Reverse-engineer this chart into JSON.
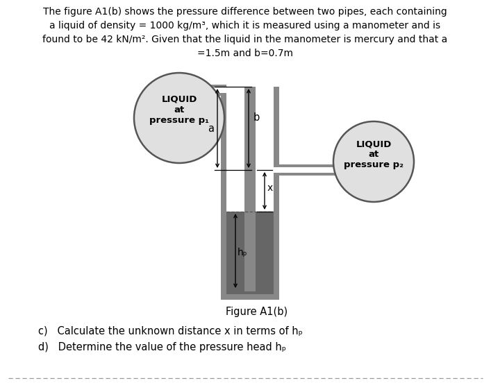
{
  "title_text": "The figure A1(b) shows the pressure difference between two pipes, each containing\na liquid of density = 1000 kg/m³, which it is measured using a manometer and is\nfound to be 42 kN/m². Given that the liquid in the manometer is mercury and that a\n=1.5m and b=0.7m",
  "figure_label": "Figure A1(b)",
  "question_c": "c)   Calculate the unknown distance x in terms of hₚ",
  "question_d": "d)   Determine the value of the pressure head hₚ",
  "liquid1_label": "LIQUID\nat\npressure p₁",
  "liquid2_label": "LIQUID\nat\npressure p₂",
  "label_a": "a",
  "label_b": "b",
  "label_x": "x",
  "label_hp": "hₚ",
  "bg_color": "#ffffff",
  "pipe_gray": "#888888",
  "mercury_gray": "#666666",
  "circle_fill": "#e0e0e0",
  "circle_edge": "#555555"
}
